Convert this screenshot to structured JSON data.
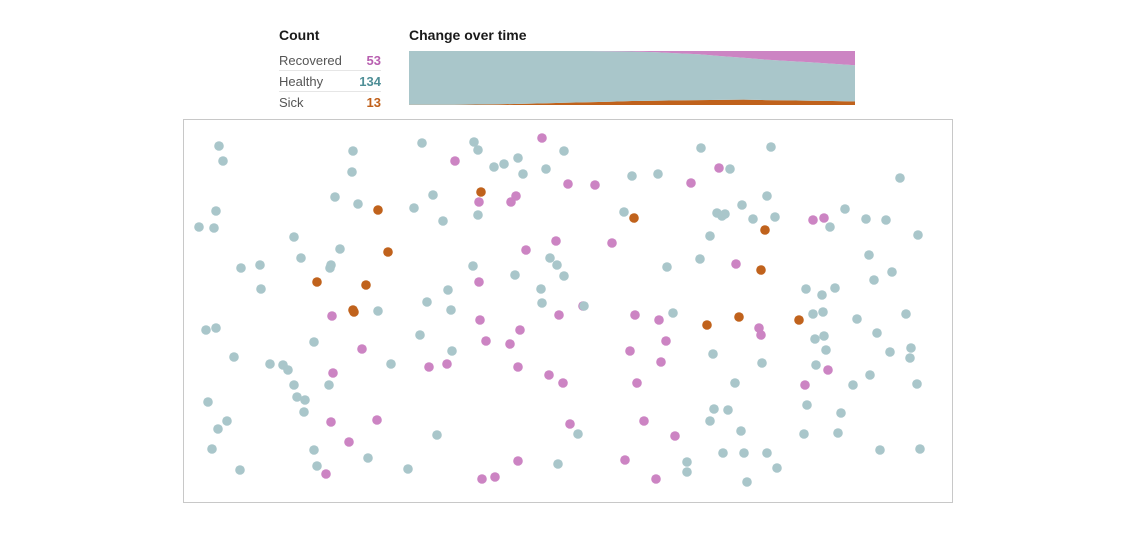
{
  "count_panel": {
    "title": "Count",
    "rows": [
      {
        "label": "Recovered",
        "value": "53",
        "color": "#b85fb0"
      },
      {
        "label": "Healthy",
        "value": "134",
        "color": "#4f8f97"
      },
      {
        "label": "Sick",
        "value": "13",
        "color": "#c0601a"
      }
    ]
  },
  "change_panel": {
    "title": "Change over time"
  },
  "colors": {
    "healthy": "#a9c6ca",
    "sick": "#c0621c",
    "recovered": "#cc84c3"
  },
  "chart_data": {
    "type": "area",
    "title": "Change over time",
    "stacked": true,
    "total": 200,
    "x": [
      0,
      1,
      2,
      3,
      4,
      5,
      6,
      7,
      8,
      9,
      10,
      11,
      12,
      13,
      14,
      15,
      16,
      17,
      18,
      19,
      20
    ],
    "series": [
      {
        "name": "Sick",
        "values": [
          1,
          1,
          1,
          2,
          3,
          4,
          6,
          8,
          10,
          12,
          15,
          16,
          17,
          18,
          19,
          20,
          18,
          17,
          16,
          15,
          13
        ]
      },
      {
        "name": "Healthy",
        "values": [
          199,
          199,
          199,
          198,
          197,
          196,
          194,
          192,
          190,
          187,
          183,
          180,
          175,
          170,
          162,
          155,
          150,
          146,
          142,
          138,
          134
        ]
      },
      {
        "name": "Recovered",
        "values": [
          0,
          0,
          0,
          0,
          0,
          0,
          0,
          0,
          0,
          1,
          2,
          4,
          8,
          12,
          19,
          25,
          32,
          37,
          42,
          47,
          53
        ]
      }
    ]
  },
  "simulation": {
    "status_legend": {
      "h": "Healthy",
      "s": "Sick",
      "r": "Recovered"
    }
  }
}
